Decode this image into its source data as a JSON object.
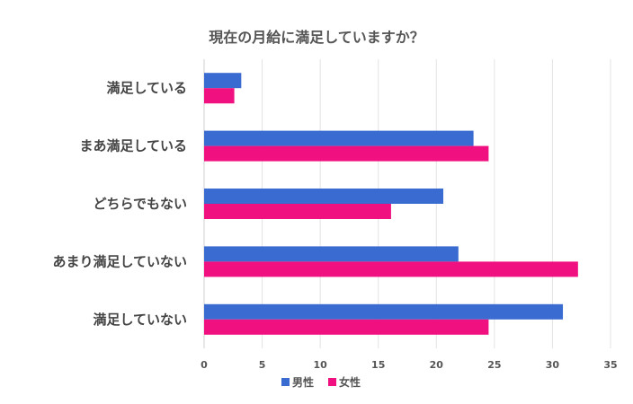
{
  "chart_data": {
    "type": "bar",
    "orientation": "horizontal",
    "title": "現在の月給に満足していますか？",
    "categories": [
      "満足している",
      "まあ満足している",
      "どちらでもない",
      "あまり満足していない",
      "満足していない"
    ],
    "series": [
      {
        "name": "男性",
        "color": "#3a6bd1",
        "values": [
          3.2,
          23.2,
          20.6,
          21.9,
          30.9
        ]
      },
      {
        "name": "女性",
        "color": "#f0107f",
        "values": [
          2.6,
          24.5,
          16.1,
          32.2,
          24.5
        ]
      }
    ],
    "xlim": [
      0,
      35
    ],
    "xticks": [
      "0",
      "5",
      "10",
      "15",
      "20",
      "25",
      "30",
      "35"
    ],
    "grid": true,
    "legend_position": "bottom"
  }
}
